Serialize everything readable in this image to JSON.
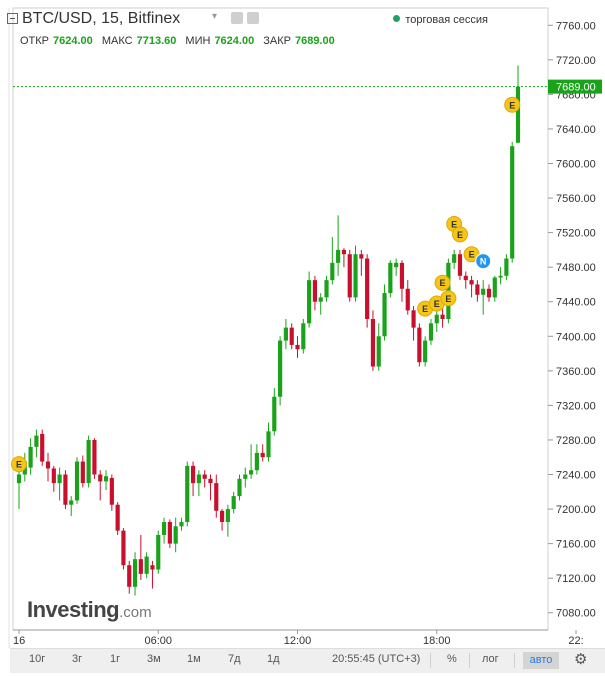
{
  "header": {
    "title": "BTC/USD, 15, Bitfinex",
    "session": "торговая сессия",
    "ohlc": [
      {
        "label": "ОТКР",
        "value": "7624.00"
      },
      {
        "label": "МАКС",
        "value": "7713.60"
      },
      {
        "label": "МИН",
        "value": "7624.00"
      },
      {
        "label": "ЗАКР",
        "value": "7689.00"
      }
    ]
  },
  "brand": {
    "name": "Investing",
    "suffix": ".com"
  },
  "toolbar": {
    "ranges": [
      "10г",
      "3г",
      "1г",
      "3м",
      "1м",
      "7д",
      "1д"
    ],
    "time": "20:55:45 (UTC+3)",
    "percent": "%",
    "log": "лог",
    "auto": "авто"
  },
  "colors": {
    "up": "#1aa31a",
    "down": "#c8102e",
    "event": "#f5c518",
    "news": "#2196f3",
    "price_line": "#1aa31a"
  },
  "chart_data": {
    "type": "candlestick",
    "symbol": "BTC/USD",
    "interval": "15",
    "exchange": "Bitfinex",
    "ylim": [
      7060,
      7780
    ],
    "y_ticks": [
      7080,
      7120,
      7160,
      7200,
      7240,
      7280,
      7320,
      7360,
      7400,
      7440,
      7480,
      7520,
      7560,
      7600,
      7640,
      7680,
      7720,
      7760
    ],
    "x_ticks": [
      "16",
      "06:00",
      "12:00",
      "18:00",
      "22:"
    ],
    "last_price": 7689.0,
    "candles": [
      {
        "o": 7230,
        "h": 7255,
        "l": 7200,
        "c": 7240
      },
      {
        "o": 7240,
        "h": 7265,
        "l": 7232,
        "c": 7255
      },
      {
        "o": 7248,
        "h": 7282,
        "l": 7240,
        "c": 7272
      },
      {
        "o": 7272,
        "h": 7292,
        "l": 7260,
        "c": 7285
      },
      {
        "o": 7287,
        "h": 7292,
        "l": 7250,
        "c": 7255
      },
      {
        "o": 7255,
        "h": 7265,
        "l": 7232,
        "c": 7247
      },
      {
        "o": 7247,
        "h": 7250,
        "l": 7220,
        "c": 7230
      },
      {
        "o": 7230,
        "h": 7248,
        "l": 7210,
        "c": 7240
      },
      {
        "o": 7240,
        "h": 7245,
        "l": 7200,
        "c": 7205
      },
      {
        "o": 7205,
        "h": 7215,
        "l": 7192,
        "c": 7210
      },
      {
        "o": 7210,
        "h": 7260,
        "l": 7206,
        "c": 7255
      },
      {
        "o": 7255,
        "h": 7262,
        "l": 7225,
        "c": 7230
      },
      {
        "o": 7230,
        "h": 7285,
        "l": 7225,
        "c": 7280
      },
      {
        "o": 7280,
        "h": 7282,
        "l": 7235,
        "c": 7240
      },
      {
        "o": 7240,
        "h": 7245,
        "l": 7210,
        "c": 7232
      },
      {
        "o": 7232,
        "h": 7245,
        "l": 7222,
        "c": 7238
      },
      {
        "o": 7236,
        "h": 7240,
        "l": 7198,
        "c": 7205
      },
      {
        "o": 7205,
        "h": 7208,
        "l": 7170,
        "c": 7175
      },
      {
        "o": 7175,
        "h": 7178,
        "l": 7130,
        "c": 7135
      },
      {
        "o": 7135,
        "h": 7140,
        "l": 7102,
        "c": 7110
      },
      {
        "o": 7110,
        "h": 7150,
        "l": 7100,
        "c": 7142
      },
      {
        "o": 7142,
        "h": 7170,
        "l": 7118,
        "c": 7125
      },
      {
        "o": 7125,
        "h": 7150,
        "l": 7120,
        "c": 7145
      },
      {
        "o": 7135,
        "h": 7140,
        "l": 7108,
        "c": 7130
      },
      {
        "o": 7130,
        "h": 7175,
        "l": 7125,
        "c": 7170
      },
      {
        "o": 7170,
        "h": 7190,
        "l": 7160,
        "c": 7185
      },
      {
        "o": 7185,
        "h": 7188,
        "l": 7155,
        "c": 7160
      },
      {
        "o": 7160,
        "h": 7190,
        "l": 7150,
        "c": 7180
      },
      {
        "o": 7180,
        "h": 7190,
        "l": 7175,
        "c": 7185
      },
      {
        "o": 7185,
        "h": 7255,
        "l": 7180,
        "c": 7250
      },
      {
        "o": 7250,
        "h": 7255,
        "l": 7215,
        "c": 7230
      },
      {
        "o": 7230,
        "h": 7245,
        "l": 7215,
        "c": 7240
      },
      {
        "o": 7240,
        "h": 7245,
        "l": 7225,
        "c": 7235
      },
      {
        "o": 7235,
        "h": 7240,
        "l": 7210,
        "c": 7230
      },
      {
        "o": 7230,
        "h": 7240,
        "l": 7190,
        "c": 7198
      },
      {
        "o": 7198,
        "h": 7200,
        "l": 7175,
        "c": 7185
      },
      {
        "o": 7185,
        "h": 7205,
        "l": 7168,
        "c": 7200
      },
      {
        "o": 7200,
        "h": 7220,
        "l": 7195,
        "c": 7215
      },
      {
        "o": 7215,
        "h": 7240,
        "l": 7210,
        "c": 7235
      },
      {
        "o": 7235,
        "h": 7248,
        "l": 7225,
        "c": 7240
      },
      {
        "o": 7240,
        "h": 7275,
        "l": 7235,
        "c": 7245
      },
      {
        "o": 7245,
        "h": 7275,
        "l": 7240,
        "c": 7265
      },
      {
        "o": 7265,
        "h": 7275,
        "l": 7255,
        "c": 7260
      },
      {
        "o": 7260,
        "h": 7300,
        "l": 7255,
        "c": 7290
      },
      {
        "o": 7290,
        "h": 7340,
        "l": 7285,
        "c": 7330
      },
      {
        "o": 7330,
        "h": 7400,
        "l": 7320,
        "c": 7395
      },
      {
        "o": 7395,
        "h": 7420,
        "l": 7385,
        "c": 7410
      },
      {
        "o": 7410,
        "h": 7415,
        "l": 7385,
        "c": 7390
      },
      {
        "o": 7390,
        "h": 7400,
        "l": 7375,
        "c": 7385
      },
      {
        "o": 7385,
        "h": 7420,
        "l": 7380,
        "c": 7415
      },
      {
        "o": 7415,
        "h": 7475,
        "l": 7410,
        "c": 7465
      },
      {
        "o": 7465,
        "h": 7470,
        "l": 7430,
        "c": 7440
      },
      {
        "o": 7440,
        "h": 7450,
        "l": 7425,
        "c": 7445
      },
      {
        "o": 7445,
        "h": 7470,
        "l": 7440,
        "c": 7465
      },
      {
        "o": 7465,
        "h": 7515,
        "l": 7460,
        "c": 7485
      },
      {
        "o": 7485,
        "h": 7540,
        "l": 7470,
        "c": 7500
      },
      {
        "o": 7500,
        "h": 7502,
        "l": 7480,
        "c": 7495
      },
      {
        "o": 7495,
        "h": 7500,
        "l": 7440,
        "c": 7445
      },
      {
        "o": 7445,
        "h": 7505,
        "l": 7440,
        "c": 7495
      },
      {
        "o": 7495,
        "h": 7500,
        "l": 7470,
        "c": 7490
      },
      {
        "o": 7490,
        "h": 7495,
        "l": 7410,
        "c": 7420
      },
      {
        "o": 7420,
        "h": 7430,
        "l": 7360,
        "c": 7365
      },
      {
        "o": 7365,
        "h": 7415,
        "l": 7360,
        "c": 7400
      },
      {
        "o": 7400,
        "h": 7460,
        "l": 7395,
        "c": 7450
      },
      {
        "o": 7450,
        "h": 7488,
        "l": 7445,
        "c": 7485
      },
      {
        "o": 7480,
        "h": 7490,
        "l": 7470,
        "c": 7485
      },
      {
        "o": 7485,
        "h": 7488,
        "l": 7440,
        "c": 7455
      },
      {
        "o": 7455,
        "h": 7465,
        "l": 7425,
        "c": 7430
      },
      {
        "o": 7430,
        "h": 7435,
        "l": 7395,
        "c": 7410
      },
      {
        "o": 7410,
        "h": 7415,
        "l": 7365,
        "c": 7370
      },
      {
        "o": 7370,
        "h": 7400,
        "l": 7365,
        "c": 7395
      },
      {
        "o": 7395,
        "h": 7420,
        "l": 7390,
        "c": 7415
      },
      {
        "o": 7415,
        "h": 7430,
        "l": 7405,
        "c": 7425
      },
      {
        "o": 7425,
        "h": 7440,
        "l": 7410,
        "c": 7420
      },
      {
        "o": 7420,
        "h": 7490,
        "l": 7415,
        "c": 7485
      },
      {
        "o": 7485,
        "h": 7500,
        "l": 7478,
        "c": 7495
      },
      {
        "o": 7495,
        "h": 7500,
        "l": 7465,
        "c": 7470
      },
      {
        "o": 7470,
        "h": 7475,
        "l": 7455,
        "c": 7465
      },
      {
        "o": 7465,
        "h": 7470,
        "l": 7445,
        "c": 7460
      },
      {
        "o": 7460,
        "h": 7465,
        "l": 7440,
        "c": 7448
      },
      {
        "o": 7448,
        "h": 7465,
        "l": 7425,
        "c": 7455
      },
      {
        "o": 7455,
        "h": 7460,
        "l": 7440,
        "c": 7445
      },
      {
        "o": 7445,
        "h": 7470,
        "l": 7440,
        "c": 7468
      },
      {
        "o": 7468,
        "h": 7480,
        "l": 7460,
        "c": 7470
      },
      {
        "o": 7470,
        "h": 7495,
        "l": 7465,
        "c": 7490
      },
      {
        "o": 7490,
        "h": 7625,
        "l": 7485,
        "c": 7620
      },
      {
        "o": 7624,
        "h": 7713.6,
        "l": 7624,
        "c": 7689
      }
    ],
    "markers": [
      {
        "label": "E",
        "type": "event",
        "i": 0,
        "price": 7252
      },
      {
        "label": "E",
        "type": "event",
        "i": 70,
        "price": 7432
      },
      {
        "label": "E",
        "type": "event",
        "i": 72,
        "price": 7438
      },
      {
        "label": "E",
        "type": "event",
        "i": 73,
        "price": 7462
      },
      {
        "label": "E",
        "type": "event",
        "i": 74,
        "price": 7444
      },
      {
        "label": "E",
        "type": "event",
        "i": 75,
        "price": 7530
      },
      {
        "label": "E",
        "type": "event",
        "i": 76,
        "price": 7518
      },
      {
        "label": "E",
        "type": "event",
        "i": 78,
        "price": 7495
      },
      {
        "label": "N",
        "type": "news",
        "i": 80,
        "price": 7487
      },
      {
        "label": "E",
        "type": "event",
        "i": 85,
        "price": 7668
      }
    ]
  }
}
